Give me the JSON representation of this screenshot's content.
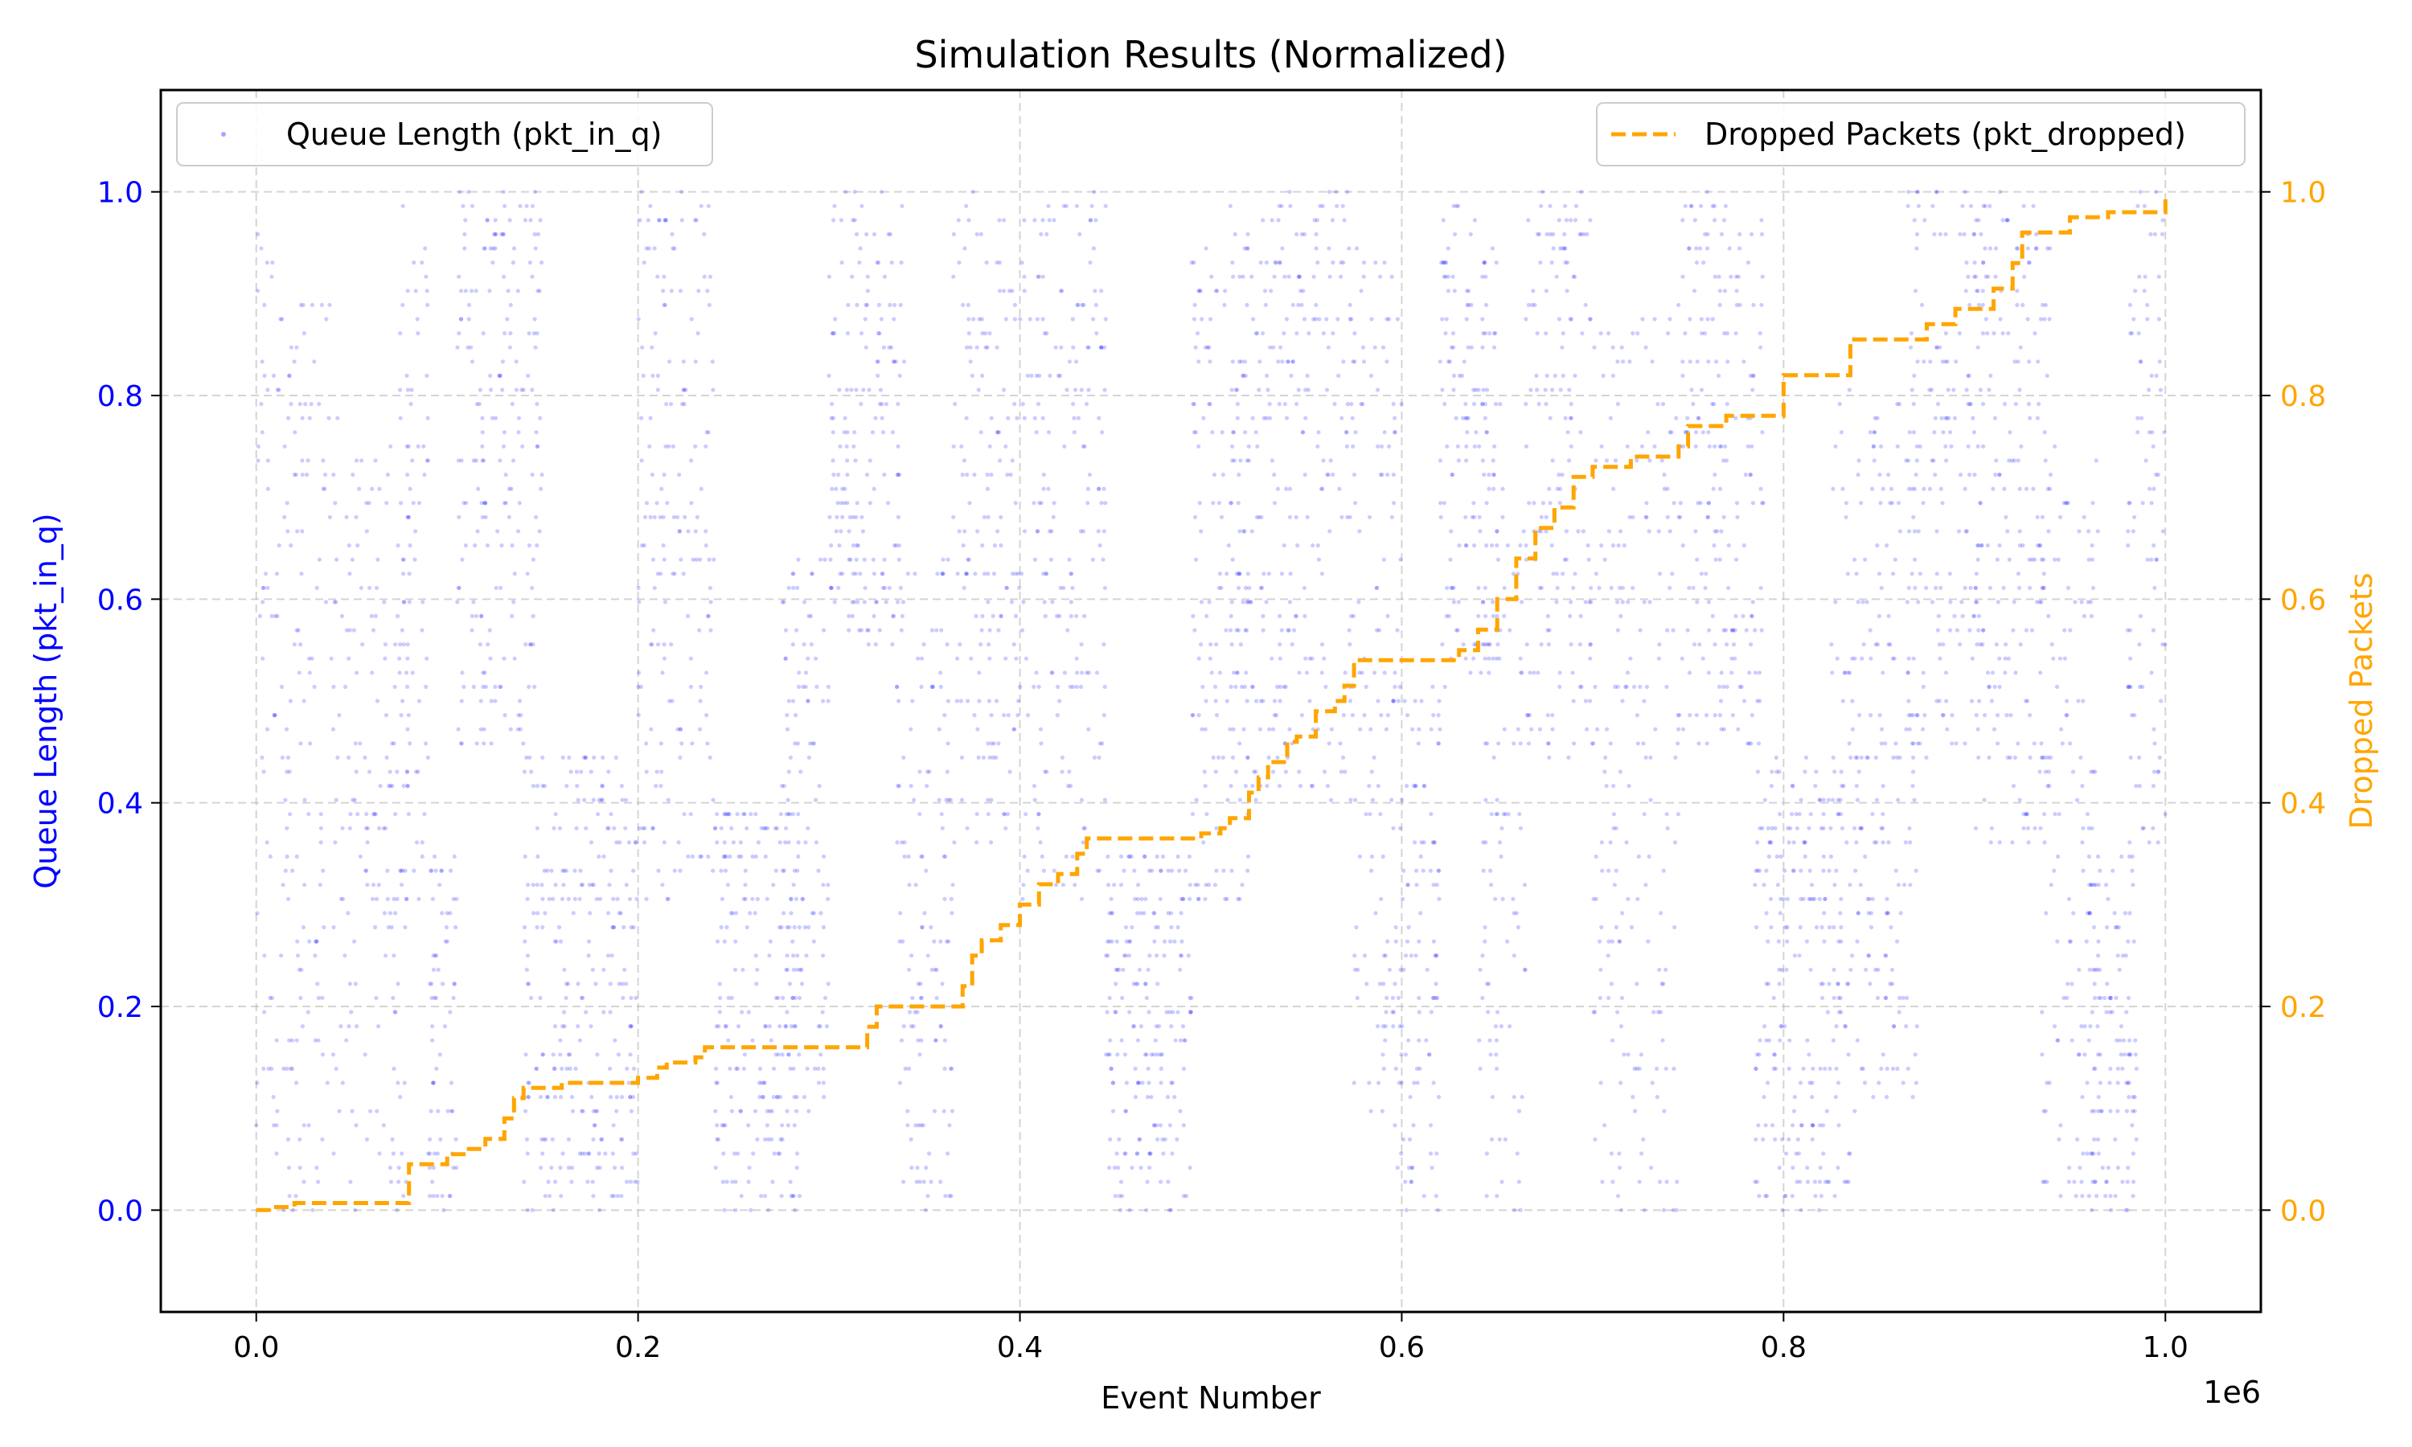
{
  "chart_data": {
    "type": "scatter",
    "title": "Simulation Results (Normalized)",
    "xlabel": "Event Number",
    "x_offset_label": "1e6",
    "ylabel_left": "Queue Length (pkt_in_q)",
    "ylabel_right": "Dropped Packets",
    "xlim": [
      -50000,
      1050000
    ],
    "ylim": [
      -0.1,
      1.1
    ],
    "x_ticks": [
      0,
      200000,
      400000,
      600000,
      800000,
      1000000
    ],
    "x_tick_labels": [
      "0.0",
      "0.2",
      "0.4",
      "0.6",
      "0.8",
      "1.0"
    ],
    "y_ticks": [
      0,
      0.2,
      0.4,
      0.6,
      0.8,
      1.0
    ],
    "y_tick_labels": [
      "0.0",
      "0.2",
      "0.4",
      "0.6",
      "0.8",
      "1.0"
    ],
    "grid": true,
    "left_axis_color": "#0000ff",
    "right_axis_color": "#ffa500",
    "series": [
      {
        "name": "Queue Length (pkt_in_q)",
        "type": "scatter",
        "axis": "left",
        "color": "#0000ff",
        "legend_position": "upper-left",
        "clusters": [
          {
            "x_start": 0,
            "x_end": 10000,
            "y_range": [
              0.0,
              0.97
            ]
          },
          {
            "x_start": 10000,
            "x_end": 45000,
            "y_range": [
              0.0,
              0.9
            ]
          },
          {
            "x_start": 45000,
            "x_end": 80000,
            "y_range": [
              0.0,
              0.75
            ]
          },
          {
            "x_start": 75000,
            "x_end": 90000,
            "y_range": [
              0.3,
              1.0
            ]
          },
          {
            "x_start": 90000,
            "x_end": 105000,
            "y_range": [
              0.0,
              0.35
            ]
          },
          {
            "x_start": 105000,
            "x_end": 150000,
            "y_range": [
              0.45,
              1.0
            ]
          },
          {
            "x_start": 140000,
            "x_end": 200000,
            "y_range": [
              0.0,
              0.45
            ]
          },
          {
            "x_start": 200000,
            "x_end": 240000,
            "y_range": [
              0.3,
              1.0
            ]
          },
          {
            "x_start": 240000,
            "x_end": 285000,
            "y_range": [
              0.0,
              0.4
            ]
          },
          {
            "x_start": 275000,
            "x_end": 300000,
            "y_range": [
              0.1,
              0.65
            ]
          },
          {
            "x_start": 300000,
            "x_end": 340000,
            "y_range": [
              0.55,
              1.0
            ]
          },
          {
            "x_start": 335000,
            "x_end": 365000,
            "y_range": [
              0.0,
              0.65
            ]
          },
          {
            "x_start": 365000,
            "x_end": 400000,
            "y_range": [
              0.35,
              1.0
            ]
          },
          {
            "x_start": 400000,
            "x_end": 445000,
            "y_range": [
              0.3,
              1.0
            ]
          },
          {
            "x_start": 445000,
            "x_end": 490000,
            "y_range": [
              0.0,
              0.35
            ]
          },
          {
            "x_start": 490000,
            "x_end": 520000,
            "y_range": [
              0.3,
              0.95
            ]
          },
          {
            "x_start": 510000,
            "x_end": 575000,
            "y_range": [
              0.4,
              1.0
            ]
          },
          {
            "x_start": 575000,
            "x_end": 600000,
            "y_range": [
              0.1,
              0.95
            ]
          },
          {
            "x_start": 595000,
            "x_end": 620000,
            "y_range": [
              0.0,
              0.55
            ]
          },
          {
            "x_start": 620000,
            "x_end": 650000,
            "y_range": [
              0.5,
              1.0
            ]
          },
          {
            "x_start": 640000,
            "x_end": 665000,
            "y_range": [
              0.0,
              0.8
            ]
          },
          {
            "x_start": 665000,
            "x_end": 700000,
            "y_range": [
              0.45,
              1.0
            ]
          },
          {
            "x_start": 700000,
            "x_end": 745000,
            "y_range": [
              0.0,
              0.9
            ]
          },
          {
            "x_start": 745000,
            "x_end": 790000,
            "y_range": [
              0.45,
              1.0
            ]
          },
          {
            "x_start": 785000,
            "x_end": 835000,
            "y_range": [
              0.0,
              0.45
            ]
          },
          {
            "x_start": 825000,
            "x_end": 870000,
            "y_range": [
              0.1,
              0.8
            ]
          },
          {
            "x_start": 865000,
            "x_end": 905000,
            "y_range": [
              0.45,
              1.0
            ]
          },
          {
            "x_start": 900000,
            "x_end": 940000,
            "y_range": [
              0.35,
              1.0
            ]
          },
          {
            "x_start": 935000,
            "x_end": 965000,
            "y_range": [
              0.0,
              0.75
            ]
          },
          {
            "x_start": 960000,
            "x_end": 985000,
            "y_range": [
              0.0,
              0.35
            ]
          },
          {
            "x_start": 980000,
            "x_end": 1000000,
            "y_range": [
              0.35,
              1.0
            ]
          }
        ]
      },
      {
        "name": "Dropped Packets (pkt_dropped)",
        "type": "line",
        "style": "dashed",
        "axis": "right",
        "color": "#ffa500",
        "legend_position": "upper-right",
        "x": [
          0,
          8000,
          20000,
          50000,
          78000,
          80000,
          95000,
          100000,
          110000,
          120000,
          130000,
          135000,
          140000,
          150000,
          160000,
          170000,
          195000,
          200000,
          210000,
          215000,
          230000,
          235000,
          240000,
          250000,
          310000,
          320000,
          325000,
          335000,
          365000,
          370000,
          375000,
          380000,
          390000,
          400000,
          410000,
          420000,
          430000,
          435000,
          445000,
          490000,
          495000,
          505000,
          510000,
          520000,
          525000,
          530000,
          540000,
          545000,
          555000,
          565000,
          570000,
          575000,
          590000,
          600000,
          610000,
          625000,
          630000,
          640000,
          650000,
          660000,
          670000,
          680000,
          690000,
          700000,
          720000,
          745000,
          750000,
          770000,
          800000,
          830000,
          835000,
          870000,
          875000,
          890000,
          895000,
          910000,
          920000,
          925000,
          945000,
          950000,
          970000,
          995000,
          1000000
        ],
        "values": [
          0.0,
          0.003,
          0.007,
          0.007,
          0.007,
          0.045,
          0.045,
          0.055,
          0.06,
          0.07,
          0.09,
          0.11,
          0.12,
          0.12,
          0.125,
          0.125,
          0.125,
          0.13,
          0.14,
          0.145,
          0.15,
          0.16,
          0.16,
          0.16,
          0.16,
          0.18,
          0.2,
          0.2,
          0.2,
          0.22,
          0.25,
          0.265,
          0.28,
          0.3,
          0.32,
          0.33,
          0.35,
          0.365,
          0.365,
          0.365,
          0.37,
          0.375,
          0.385,
          0.41,
          0.425,
          0.44,
          0.46,
          0.465,
          0.49,
          0.5,
          0.515,
          0.54,
          0.54,
          0.54,
          0.54,
          0.54,
          0.55,
          0.57,
          0.6,
          0.64,
          0.67,
          0.69,
          0.72,
          0.73,
          0.74,
          0.75,
          0.77,
          0.78,
          0.82,
          0.82,
          0.855,
          0.855,
          0.87,
          0.885,
          0.885,
          0.905,
          0.93,
          0.96,
          0.96,
          0.975,
          0.98,
          0.98,
          0.995
        ]
      }
    ]
  }
}
